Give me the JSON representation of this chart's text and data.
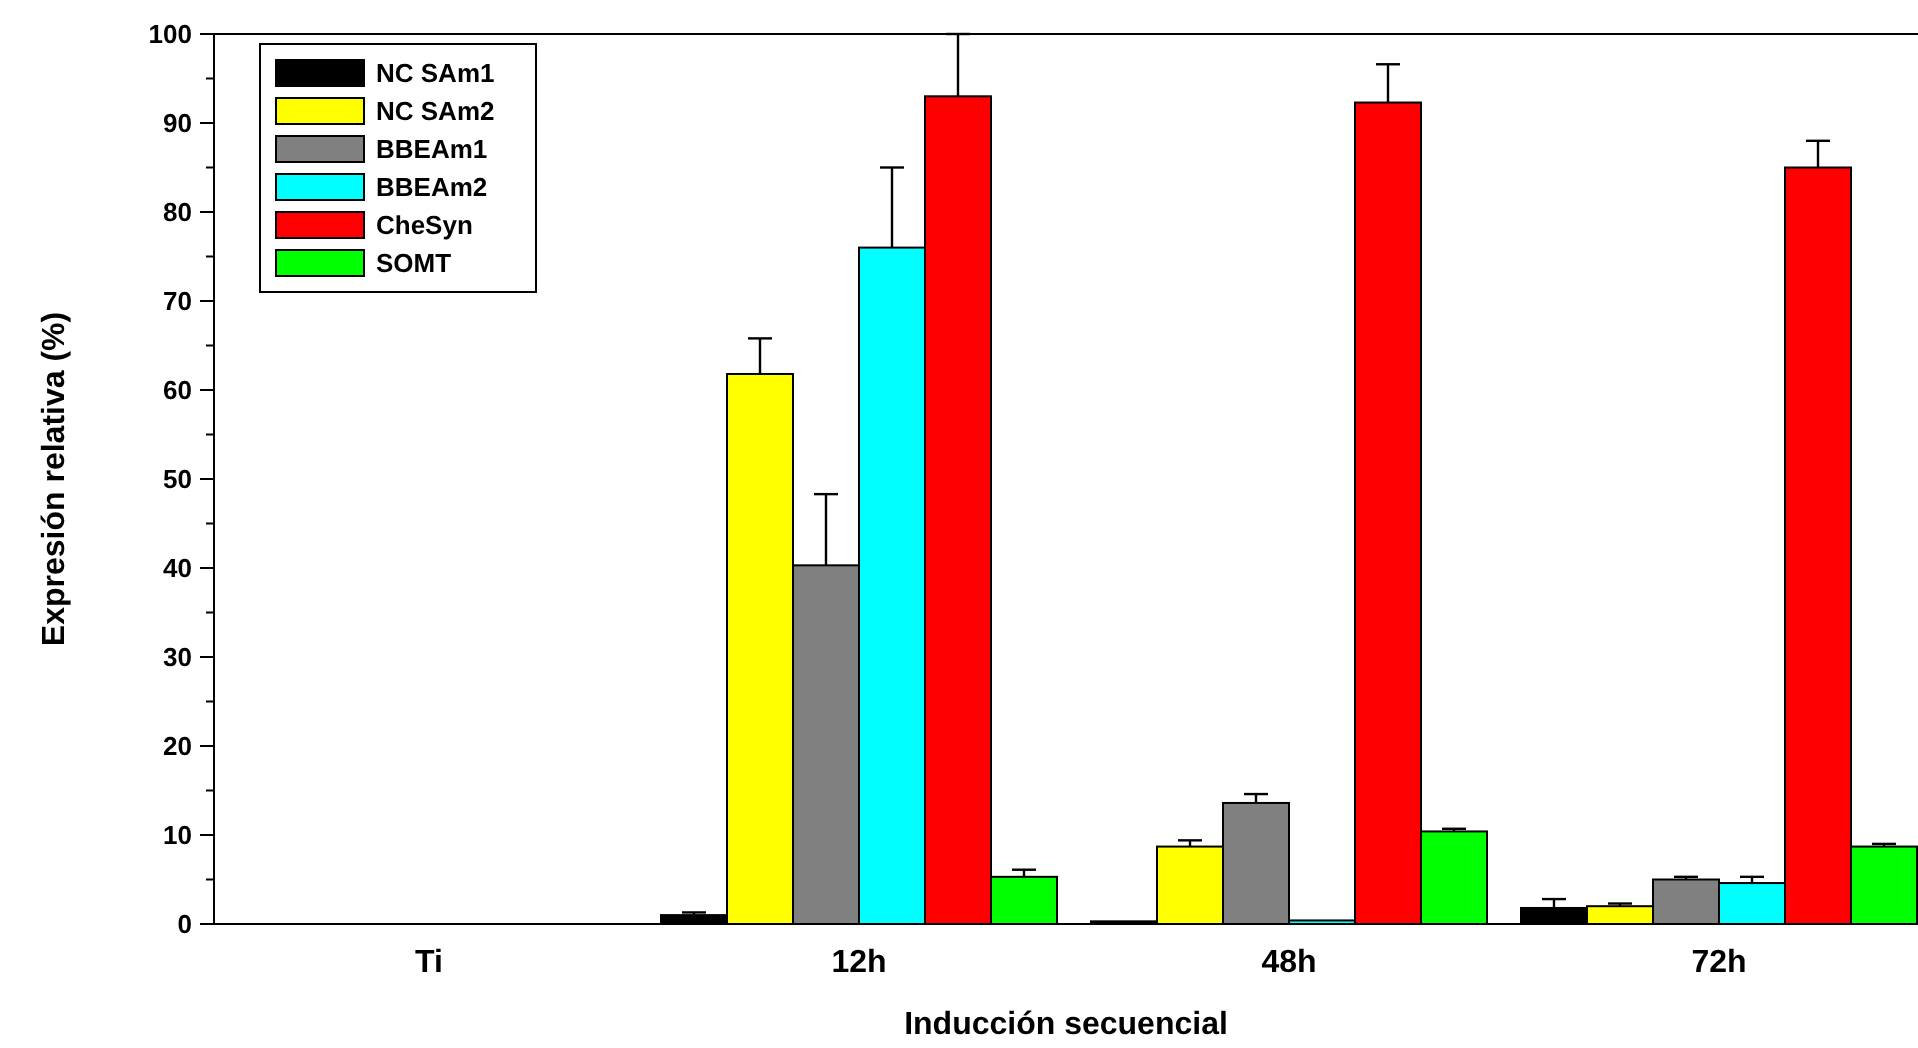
{
  "chart_data": {
    "type": "bar",
    "xlabel": "Inducción secuencial",
    "ylabel": "Expresión relativa (%)",
    "categories": [
      "Ti",
      "12h",
      "48h",
      "72h"
    ],
    "series": [
      {
        "name": "NC SAm1",
        "color": "#000000",
        "values": [
          0,
          1,
          0.3,
          1.8
        ],
        "errors": [
          null,
          [
            1,
            1.3
          ],
          null,
          [
            1.8,
            2.8
          ]
        ]
      },
      {
        "name": "NC SAm2",
        "color": "#ffff00",
        "values": [
          0,
          61.8,
          8.7,
          2
        ],
        "errors": [
          null,
          [
            61.8,
            65.8
          ],
          [
            8.7,
            9.4
          ],
          [
            2,
            2.3
          ]
        ]
      },
      {
        "name": "BBEAm1",
        "color": "#808080",
        "values": [
          0,
          40.3,
          13.6,
          5
        ],
        "errors": [
          null,
          [
            40.3,
            48.3
          ],
          [
            13.6,
            14.6
          ],
          [
            5,
            5.3
          ]
        ]
      },
      {
        "name": "BBEAm2",
        "color": "#00ffff",
        "values": [
          0,
          76,
          0.4,
          4.6
        ],
        "errors": [
          null,
          [
            76,
            85
          ],
          null,
          [
            4.6,
            5.3
          ]
        ]
      },
      {
        "name": "CheSyn",
        "color": "#ff0000",
        "values": [
          0,
          93,
          92.3,
          85
        ],
        "errors": [
          null,
          [
            93,
            100
          ],
          [
            92.3,
            96.6
          ],
          [
            85,
            88
          ]
        ]
      },
      {
        "name": "SOMT",
        "color": "#00ff00",
        "values": [
          0,
          5.3,
          10.4,
          8.7
        ],
        "errors": [
          null,
          [
            5.3,
            6.1
          ],
          [
            10.4,
            10.7
          ],
          [
            8.7,
            9
          ]
        ]
      }
    ],
    "ylim": [
      0,
      100
    ],
    "yticks": [
      0,
      {
        "value": 5,
        "label": null
      },
      10,
      {
        "value": 15,
        "label": null
      },
      20,
      {
        "value": 25,
        "label": null
      },
      30,
      {
        "value": 35,
        "label": null
      },
      40,
      {
        "value": 45,
        "label": null
      },
      50,
      {
        "value": 55,
        "label": null
      },
      60,
      {
        "value": 65,
        "label": null
      },
      70,
      {
        "value": 75,
        "label": null
      },
      80,
      {
        "value": 85,
        "label": null
      },
      90,
      {
        "value": 95,
        "label": null
      },
      100
    ],
    "legend": "top left"
  }
}
